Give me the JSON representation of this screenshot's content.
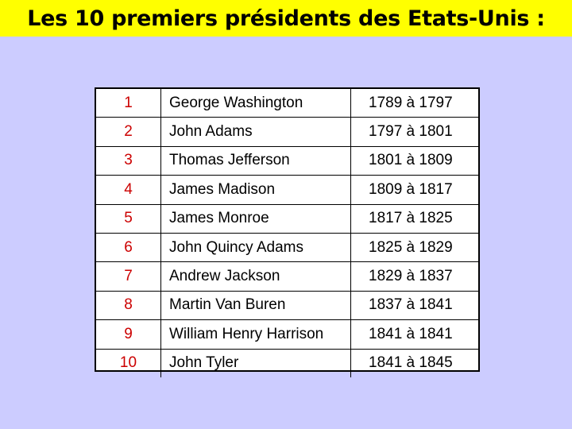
{
  "title": "Les 10 premiers présidents des Etats-Unis :",
  "presidents": [
    {
      "num": "1",
      "name": "George Washington",
      "years": "1789 à 1797"
    },
    {
      "num": "2",
      "name": "John Adams",
      "years": "1797 à 1801"
    },
    {
      "num": "3",
      "name": "Thomas Jefferson",
      "years": "1801 à 1809"
    },
    {
      "num": "4",
      "name": "James Madison",
      "years": "1809 à 1817"
    },
    {
      "num": "5",
      "name": "James Monroe",
      "years": "1817 à 1825"
    },
    {
      "num": "6",
      "name": "John Quincy Adams",
      "years": "1825 à 1829"
    },
    {
      "num": "7",
      "name": "Andrew Jackson",
      "years": "1829 à 1837"
    },
    {
      "num": "8",
      "name": "Martin Van Buren",
      "years": "1837 à 1841"
    },
    {
      "num": "9",
      "name": "William Henry Harrison",
      "years": "1841 à 1841"
    },
    {
      "num": "10",
      "name": "John Tyler",
      "years": "1841 à 1845"
    }
  ],
  "colors": {
    "background": "#ccccff",
    "title_banner": "#ffff00",
    "number_text": "#cc0000"
  }
}
